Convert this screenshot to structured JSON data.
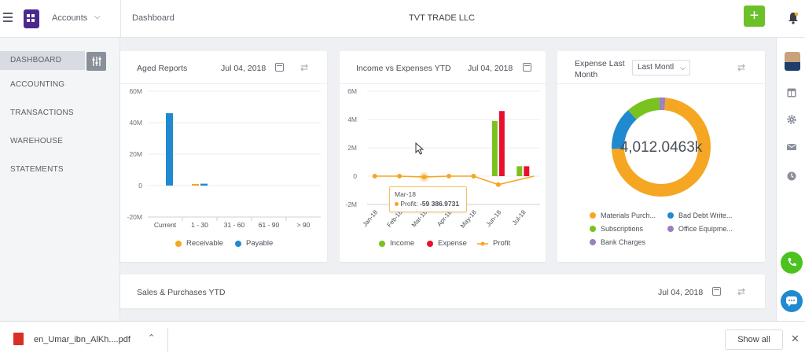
{
  "header": {
    "account_label": "Accounts",
    "breadcrumb": "Dashboard",
    "company_name": "TVT TRADE LLC",
    "add_label": "+"
  },
  "sidebar": {
    "items": [
      {
        "label": "DASHBOARD",
        "active": true
      },
      {
        "label": "ACCOUNTING"
      },
      {
        "label": "TRANSACTIONS"
      },
      {
        "label": "WAREHOUSE"
      },
      {
        "label": "STATEMENTS"
      }
    ]
  },
  "colors": {
    "accent_green": "#6cc12b",
    "brand_purple": "#4b2a8f",
    "receivable": "#f5a623",
    "payable": "#1f8ad0",
    "income": "#7ac21e",
    "expense": "#e8112d",
    "profit": "#f5a623"
  },
  "aged_reports": {
    "title": "Aged Reports",
    "date": "Jul 04, 2018",
    "legend": [
      "Receivable",
      "Payable"
    ],
    "y_ticks": [
      "60M",
      "40M",
      "20M",
      "0",
      "-20M"
    ]
  },
  "income_vs_expenses": {
    "title": "Income vs Expenses YTD",
    "date": "Jul 04, 2018",
    "legend": [
      "Income",
      "Expense",
      "Profit"
    ],
    "y_ticks": [
      "6M",
      "4M",
      "2M",
      "0",
      "-2M"
    ],
    "tooltip": {
      "title": "Mar-18",
      "label": "Profit:",
      "value": "-59 386.9731"
    }
  },
  "expense_last_month": {
    "title_line1": "Expense Last",
    "title_line2": "Month",
    "period": "Last Montl",
    "center_value": "4,012.0463k",
    "legend": [
      "Materials Purch...",
      "Bad Debt Write...",
      "Subscriptions",
      "Office Equipme...",
      "Bank Charges"
    ]
  },
  "sales_purchases": {
    "title": "Sales & Purchases YTD",
    "date": "Jul 04, 2018"
  },
  "download_bar": {
    "file_name": "en_Umar_ibn_AlKh....pdf",
    "show_all": "Show all"
  },
  "chart_data": [
    {
      "type": "bar",
      "title": "Aged Reports",
      "categories": [
        "Current",
        "1 - 30",
        "31 - 60",
        "61 - 90",
        "> 90"
      ],
      "series": [
        {
          "name": "Receivable",
          "values": [
            0,
            1,
            0,
            0,
            0
          ]
        },
        {
          "name": "Payable",
          "values": [
            46,
            1.2,
            0,
            0,
            0
          ]
        }
      ],
      "ylim": [
        -20,
        60
      ],
      "yunit": "M",
      "legend": "bottom"
    },
    {
      "type": "bar",
      "title": "Income vs Expenses YTD",
      "categories": [
        "Jan-18",
        "Feb-18",
        "Mar-18",
        "Apr-18",
        "May-18",
        "Jun-18",
        "Jul-18"
      ],
      "series": [
        {
          "name": "Income",
          "type": "bar",
          "values": [
            0,
            0,
            0,
            0,
            0,
            3.9,
            0.7
          ]
        },
        {
          "name": "Expense",
          "type": "bar",
          "values": [
            0,
            0,
            0,
            0,
            0,
            4.6,
            0.7
          ]
        },
        {
          "name": "Profit",
          "type": "line",
          "values": [
            0,
            0,
            -0.06,
            0,
            0,
            -0.6,
            0
          ]
        }
      ],
      "ylim": [
        -2,
        6
      ],
      "yunit": "M",
      "legend": "bottom"
    },
    {
      "type": "pie",
      "title": "Expense Last Month",
      "center_label": "4,012.0463k",
      "categories": [
        "Materials Purch...",
        "Bad Debt Write...",
        "Subscriptions",
        "Office Equipme...",
        "Bank Charges"
      ],
      "values": [
        73,
        14,
        11,
        1,
        1
      ],
      "colors": [
        "#f5a623",
        "#1f8ad0",
        "#7ac21e",
        "#9b7fbf",
        "#9b7fbf"
      ],
      "legend": "bottom"
    }
  ]
}
